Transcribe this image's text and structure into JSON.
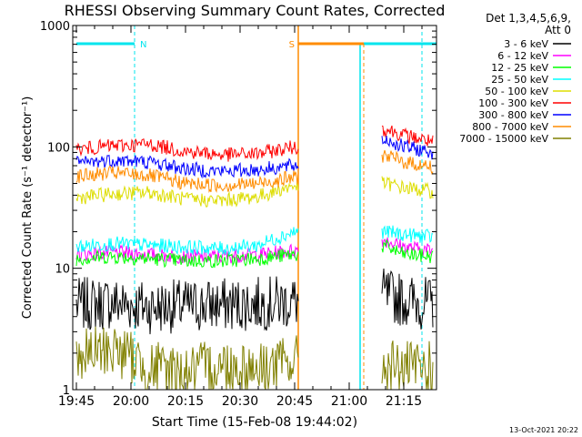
{
  "chart_data": {
    "type": "line",
    "title": "RHESSI Observing Summary Count Rates, Corrected",
    "xlabel": "Start Time (15-Feb-08 19:44:02)",
    "ylabel": "Corrected Count Rate (s⁻¹ detector⁻¹)",
    "yscale": "log",
    "ylim": [
      1,
      1000
    ],
    "xlim": [
      "19:44",
      "21:24"
    ],
    "x_ticks": [
      "19:45",
      "20:00",
      "20:15",
      "20:30",
      "20:45",
      "21:00",
      "21:15"
    ],
    "y_ticks": [
      "1",
      "10",
      "100",
      "1000"
    ],
    "grid": false,
    "legend_placement": "right",
    "legend_header": [
      "Det 1,3,4,5,6,9,",
      "Att 0"
    ],
    "footer_date": "13-Oct-2021 20:22",
    "annotations": [
      {
        "label": "N",
        "color": "#00e5ee",
        "kind": "night",
        "segments": [
          [
            "19:45",
            "20:01"
          ],
          [
            "21:03",
            "21:24"
          ]
        ]
      },
      {
        "label": "S",
        "color": "#ff8c00",
        "kind": "saa",
        "segments": [
          [
            "20:46",
            "21:04"
          ]
        ]
      }
    ],
    "gaps": [
      [
        "20:46",
        "21:09"
      ]
    ],
    "series": [
      {
        "name": "3 - 6 keV",
        "color": "#000000",
        "x": [
          "19:45",
          "19:55",
          "20:05",
          "20:15",
          "20:25",
          "20:35",
          "20:45",
          "21:10",
          "21:15",
          "21:23"
        ],
        "y": [
          5.0,
          5.2,
          4.8,
          4.9,
          5.0,
          5.1,
          5.3,
          6.0,
          5.5,
          5.0
        ]
      },
      {
        "name": "6 - 12 keV",
        "color": "#ff00ff",
        "x": [
          "19:45",
          "19:55",
          "20:05",
          "20:15",
          "20:25",
          "20:35",
          "20:45",
          "21:10",
          "21:15",
          "21:23"
        ],
        "y": [
          13,
          13.5,
          13,
          12.5,
          12.5,
          13,
          14,
          17,
          15,
          14
        ]
      },
      {
        "name": "12 - 25 keV",
        "color": "#00ff00",
        "x": [
          "19:45",
          "19:55",
          "20:05",
          "20:15",
          "20:25",
          "20:35",
          "20:45",
          "21:10",
          "21:15",
          "21:23"
        ],
        "y": [
          12,
          12.5,
          12,
          11.5,
          11.5,
          12,
          13,
          15,
          13,
          12.5
        ]
      },
      {
        "name": "25 - 50 keV",
        "color": "#00ffff",
        "x": [
          "19:45",
          "19:55",
          "20:05",
          "20:15",
          "20:25",
          "20:35",
          "20:45",
          "21:10",
          "21:15",
          "21:23"
        ],
        "y": [
          15,
          16,
          15.5,
          15,
          14.5,
          15.5,
          20,
          20,
          19,
          18
        ]
      },
      {
        "name": "50 - 100 keV",
        "color": "#dddd00",
        "x": [
          "19:45",
          "19:55",
          "20:05",
          "20:15",
          "20:25",
          "20:35",
          "20:45",
          "21:10",
          "21:15",
          "21:23"
        ],
        "y": [
          38,
          41,
          42,
          37,
          36,
          39,
          48,
          50,
          46,
          43
        ]
      },
      {
        "name": "100 - 300 keV",
        "color": "#ff0000",
        "x": [
          "19:45",
          "19:55",
          "20:05",
          "20:15",
          "20:25",
          "20:35",
          "20:45",
          "21:10",
          "21:15",
          "21:23"
        ],
        "y": [
          95,
          102,
          105,
          92,
          86,
          88,
          100,
          140,
          125,
          110
        ]
      },
      {
        "name": "300 - 800 keV",
        "color": "#0000ff",
        "x": [
          "19:45",
          "19:55",
          "20:05",
          "20:15",
          "20:25",
          "20:35",
          "20:45",
          "21:10",
          "21:15",
          "21:23"
        ],
        "y": [
          73,
          78,
          75,
          66,
          63,
          65,
          70,
          115,
          100,
          90
        ]
      },
      {
        "name": "800 - 7000 keV",
        "color": "#ff8c00",
        "x": [
          "19:45",
          "19:55",
          "20:05",
          "20:15",
          "20:25",
          "20:35",
          "20:45",
          "21:10",
          "21:15",
          "21:23"
        ],
        "y": [
          57,
          61,
          58,
          50,
          48,
          50,
          56,
          85,
          75,
          68
        ]
      },
      {
        "name": "7000 - 15000 keV",
        "color": "#808000",
        "x": [
          "19:45",
          "19:55",
          "20:05",
          "20:15",
          "20:25",
          "20:35",
          "20:45",
          "21:10",
          "21:15",
          "21:23"
        ],
        "y": [
          1.8,
          2.2,
          1.5,
          1.4,
          1.6,
          1.5,
          1.7,
          1.6,
          1.5,
          1.5
        ]
      }
    ]
  }
}
